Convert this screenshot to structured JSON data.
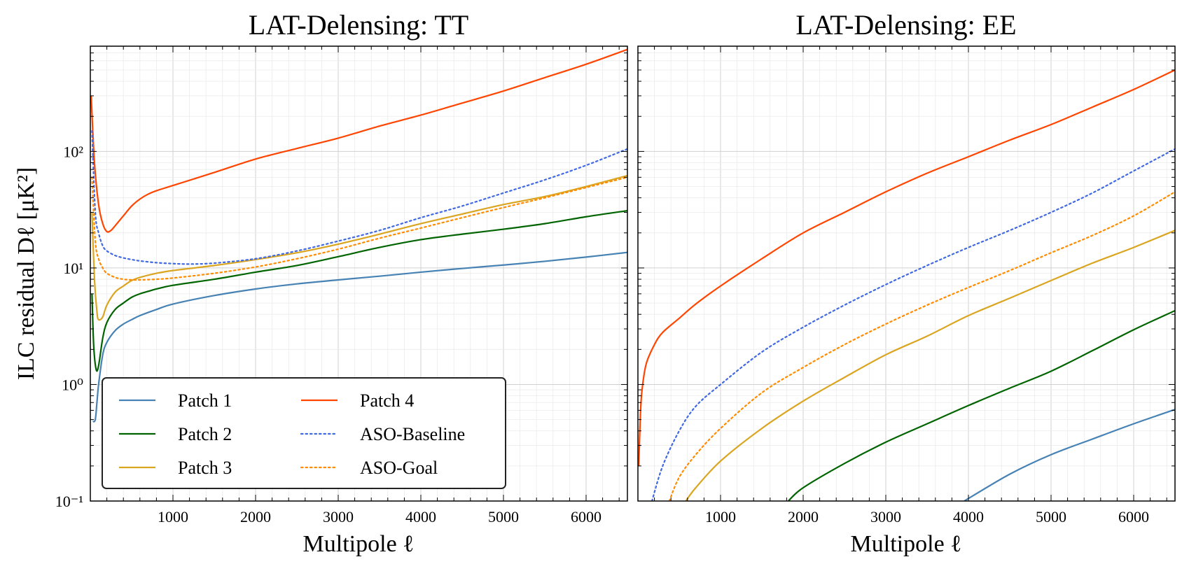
{
  "colors": {
    "patch1": "#4682b4",
    "patch2": "#006400",
    "patch3": "#daa520",
    "patch4": "#ff4500",
    "aso_baseline": "#4169e1",
    "aso_goal": "#ff8c00"
  },
  "chart_data": [
    {
      "type": "line",
      "title": "LAT-Delensing: TT",
      "xlabel": "Multipole ℓ",
      "ylabel": "ILC residual Dℓ [μK²]",
      "xlim": [
        0,
        6500
      ],
      "ylim": [
        0.1,
        800
      ],
      "yscale": "log",
      "grid": true,
      "legend": "lower-left",
      "xticks": [
        "1000",
        "2000",
        "3000",
        "4000",
        "5000",
        "6000"
      ],
      "yticks": [
        "10⁻¹",
        "10⁰",
        "10¹",
        "10²"
      ],
      "series": [
        {
          "name": "Patch 1",
          "style": "solid",
          "color": "#4682b4",
          "x": [
            30,
            60,
            80,
            100,
            150,
            200,
            300,
            400,
            500,
            600,
            800,
            1000,
            1500,
            2000,
            2500,
            3000,
            3500,
            4000,
            4500,
            5000,
            5500,
            6000,
            6500
          ],
          "y": [
            0.48,
            0.5,
            0.7,
            1.0,
            1.8,
            2.3,
            2.9,
            3.3,
            3.6,
            3.9,
            4.4,
            4.9,
            5.8,
            6.6,
            7.3,
            7.9,
            8.5,
            9.2,
            9.9,
            10.6,
            11.4,
            12.4,
            13.6
          ]
        },
        {
          "name": "Patch 2",
          "style": "solid",
          "color": "#006400",
          "x": [
            20,
            40,
            70,
            100,
            150,
            200,
            300,
            400,
            500,
            600,
            700,
            800,
            1000,
            1500,
            2000,
            2500,
            3000,
            3500,
            4000,
            4500,
            5000,
            5500,
            6000,
            6500
          ],
          "y": [
            6.0,
            2.2,
            1.35,
            1.45,
            2.5,
            3.4,
            4.4,
            5.0,
            5.6,
            6.0,
            6.3,
            6.6,
            7.1,
            8.0,
            9.2,
            10.5,
            12.5,
            15.0,
            17.5,
            19.5,
            21.5,
            24.0,
            27.5,
            31.0
          ]
        },
        {
          "name": "Patch 3",
          "style": "solid",
          "color": "#daa520",
          "x": [
            20,
            50,
            80,
            100,
            150,
            200,
            300,
            400,
            500,
            600,
            800,
            1000,
            1500,
            2000,
            2500,
            3000,
            3500,
            4000,
            4500,
            5000,
            5500,
            6000,
            6500
          ],
          "y": [
            30,
            8.0,
            4.2,
            3.6,
            3.8,
            4.8,
            6.2,
            7.0,
            7.8,
            8.3,
            9.0,
            9.5,
            10.5,
            11.8,
            13.5,
            16.0,
            19.5,
            24.0,
            29.0,
            35.0,
            41.0,
            50.0,
            62.0
          ]
        },
        {
          "name": "Patch 4",
          "style": "solid",
          "color": "#ff4500",
          "x": [
            10,
            50,
            100,
            150,
            200,
            250,
            300,
            400,
            500,
            600,
            700,
            800,
            1000,
            1500,
            2000,
            2500,
            3000,
            3500,
            4000,
            4500,
            5000,
            5500,
            6000,
            6500
          ],
          "y": [
            300,
            80,
            35,
            24,
            20.5,
            21,
            23,
            28,
            34,
            39,
            43,
            46,
            51,
            66,
            86,
            106,
            130,
            165,
            205,
            260,
            330,
            430,
            560,
            750
          ]
        },
        {
          "name": "ASO-Baseline",
          "style": "dotted",
          "color": "#4169e1",
          "x": [
            20,
            60,
            100,
            150,
            200,
            300,
            400,
            500,
            600,
            800,
            1000,
            1200,
            1500,
            2000,
            2500,
            3000,
            3500,
            4000,
            4500,
            5000,
            5500,
            6000,
            6500
          ],
          "y": [
            150,
            30,
            20,
            15.5,
            14.0,
            12.8,
            12.2,
            11.8,
            11.5,
            11.1,
            10.9,
            10.8,
            11.0,
            12.0,
            14.0,
            17.0,
            21.0,
            27.0,
            34.0,
            44.0,
            57.0,
            76.0,
            105.0
          ]
        },
        {
          "name": "ASO-Goal",
          "style": "dotted",
          "color": "#ff8c00",
          "x": [
            20,
            60,
            100,
            150,
            200,
            300,
            400,
            500,
            600,
            800,
            1000,
            1500,
            2000,
            2500,
            3000,
            3500,
            4000,
            4500,
            5000,
            5500,
            6000,
            6500
          ],
          "y": [
            60,
            17,
            12,
            10,
            9.0,
            8.3,
            8.0,
            7.9,
            7.9,
            8.0,
            8.2,
            9.0,
            10.2,
            12.0,
            14.5,
            18.0,
            22.0,
            27.0,
            33.0,
            40.0,
            49.0,
            60.0
          ]
        }
      ]
    },
    {
      "type": "line",
      "title": "LAT-Delensing: EE",
      "xlabel": "Multipole ℓ",
      "xlim": [
        0,
        6500
      ],
      "ylim": [
        0.1,
        800
      ],
      "yscale": "log",
      "grid": true,
      "xticks": [
        "1000",
        "2000",
        "3000",
        "4000",
        "5000",
        "6000"
      ],
      "series": [
        {
          "name": "Patch 1",
          "style": "solid",
          "color": "#4682b4",
          "x": [
            3950,
            4500,
            5000,
            5500,
            6000,
            6500
          ],
          "y": [
            0.1,
            0.17,
            0.25,
            0.34,
            0.46,
            0.61
          ]
        },
        {
          "name": "Patch 2",
          "style": "solid",
          "color": "#006400",
          "x": [
            1820,
            2000,
            2500,
            3000,
            3500,
            4000,
            4500,
            5000,
            5500,
            6000,
            6500
          ],
          "y": [
            0.1,
            0.13,
            0.21,
            0.32,
            0.46,
            0.66,
            0.93,
            1.3,
            1.95,
            2.95,
            4.3
          ]
        },
        {
          "name": "Patch 3",
          "style": "solid",
          "color": "#daa520",
          "x": [
            580,
            700,
            1000,
            1500,
            2000,
            2500,
            3000,
            3500,
            4000,
            4500,
            5000,
            5500,
            6000,
            6500
          ],
          "y": [
            0.1,
            0.13,
            0.22,
            0.42,
            0.72,
            1.15,
            1.8,
            2.6,
            3.9,
            5.5,
            7.8,
            11.0,
            15.0,
            21.0
          ]
        },
        {
          "name": "Patch 4",
          "style": "solid",
          "color": "#ff4500",
          "x": [
            10,
            30,
            50,
            100,
            200,
            300,
            500,
            700,
            1000,
            1500,
            2000,
            2500,
            3000,
            3500,
            4000,
            4500,
            5000,
            5500,
            6000,
            6500
          ],
          "y": [
            0.2,
            0.55,
            0.9,
            1.5,
            2.2,
            2.8,
            3.7,
            4.9,
            7.0,
            12.0,
            20.0,
            30.0,
            45.0,
            65.0,
            90.0,
            125.0,
            170.0,
            240.0,
            340.0,
            500.0
          ]
        },
        {
          "name": "ASO-Baseline",
          "style": "dotted",
          "color": "#4169e1",
          "x": [
            170,
            300,
            500,
            700,
            1000,
            1500,
            2000,
            2500,
            3000,
            3500,
            4000,
            4500,
            5000,
            5500,
            6000,
            6500
          ],
          "y": [
            0.1,
            0.2,
            0.4,
            0.65,
            1.0,
            1.9,
            3.1,
            4.8,
            7.2,
            10.5,
            15.0,
            21.0,
            30.0,
            44.0,
            68.0,
            105.0
          ]
        },
        {
          "name": "ASO-Goal",
          "style": "dotted",
          "color": "#ff8c00",
          "x": [
            380,
            500,
            700,
            1000,
            1500,
            2000,
            2500,
            3000,
            3500,
            4000,
            4500,
            5000,
            5500,
            6000,
            6500
          ],
          "y": [
            0.1,
            0.16,
            0.25,
            0.42,
            0.85,
            1.4,
            2.2,
            3.3,
            4.8,
            6.8,
            9.5,
            13.5,
            19.0,
            28.0,
            45.0
          ]
        }
      ]
    }
  ],
  "legend": {
    "entries": [
      {
        "label": "Patch 1",
        "color": "#4682b4",
        "style": "solid"
      },
      {
        "label": "Patch 2",
        "color": "#006400",
        "style": "solid"
      },
      {
        "label": "Patch 3",
        "color": "#daa520",
        "style": "solid"
      },
      {
        "label": "Patch 4",
        "color": "#ff4500",
        "style": "solid"
      },
      {
        "label": "ASO-Baseline",
        "color": "#4169e1",
        "style": "dotted"
      },
      {
        "label": "ASO-Goal",
        "color": "#ff8c00",
        "style": "dotted"
      }
    ]
  }
}
